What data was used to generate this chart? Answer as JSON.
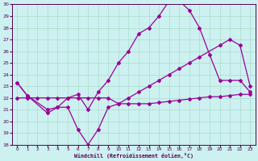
{
  "xlabel": "Windchill (Refroidissement éolien,°C)",
  "bg_color": "#cdf0f0",
  "grid_color": "#aaddcc",
  "line_color": "#990099",
  "xmin": 0,
  "xmax": 23,
  "ymin": 18,
  "ymax": 30,
  "yticks": [
    18,
    19,
    20,
    21,
    22,
    23,
    24,
    25,
    26,
    27,
    28,
    29,
    30
  ],
  "xticks": [
    0,
    1,
    2,
    3,
    4,
    5,
    6,
    7,
    8,
    9,
    10,
    11,
    12,
    13,
    14,
    15,
    16,
    17,
    18,
    19,
    20,
    21,
    22,
    23
  ],
  "line1_x": [
    0,
    1,
    2,
    3,
    4,
    5,
    6,
    7,
    8,
    9,
    10,
    11,
    12,
    13,
    14,
    15,
    16,
    17,
    18,
    19,
    20,
    21,
    22,
    23
  ],
  "line1_y": [
    22.0,
    22.0,
    22.0,
    22.0,
    22.0,
    22.0,
    22.0,
    22.0,
    22.0,
    22.0,
    21.5,
    21.5,
    21.5,
    21.5,
    21.6,
    21.7,
    21.8,
    21.9,
    22.0,
    22.1,
    22.1,
    22.2,
    22.3,
    22.3
  ],
  "line2_x": [
    0,
    1,
    3,
    4,
    5,
    6,
    7,
    8,
    9,
    10,
    11,
    12,
    13,
    14,
    15,
    16,
    17,
    18,
    20,
    21,
    22,
    23
  ],
  "line2_y": [
    23.3,
    22.2,
    20.7,
    21.2,
    21.2,
    19.3,
    18.0,
    19.3,
    21.2,
    21.5,
    22.0,
    22.5,
    23.0,
    23.5,
    24.0,
    24.5,
    25.0,
    25.5,
    26.5,
    27.0,
    26.5,
    23.0
  ],
  "line3_x": [
    0,
    1,
    3,
    4,
    5,
    6,
    7,
    8,
    9,
    10,
    11,
    12,
    13,
    14,
    15,
    16,
    17,
    18,
    19,
    20,
    21,
    22,
    23
  ],
  "line3_y": [
    23.3,
    22.2,
    21.0,
    21.2,
    22.0,
    22.3,
    21.0,
    22.5,
    23.5,
    25.0,
    26.0,
    27.5,
    28.0,
    29.0,
    30.3,
    30.3,
    29.5,
    28.0,
    25.7,
    23.5,
    23.5,
    23.5,
    22.5
  ]
}
